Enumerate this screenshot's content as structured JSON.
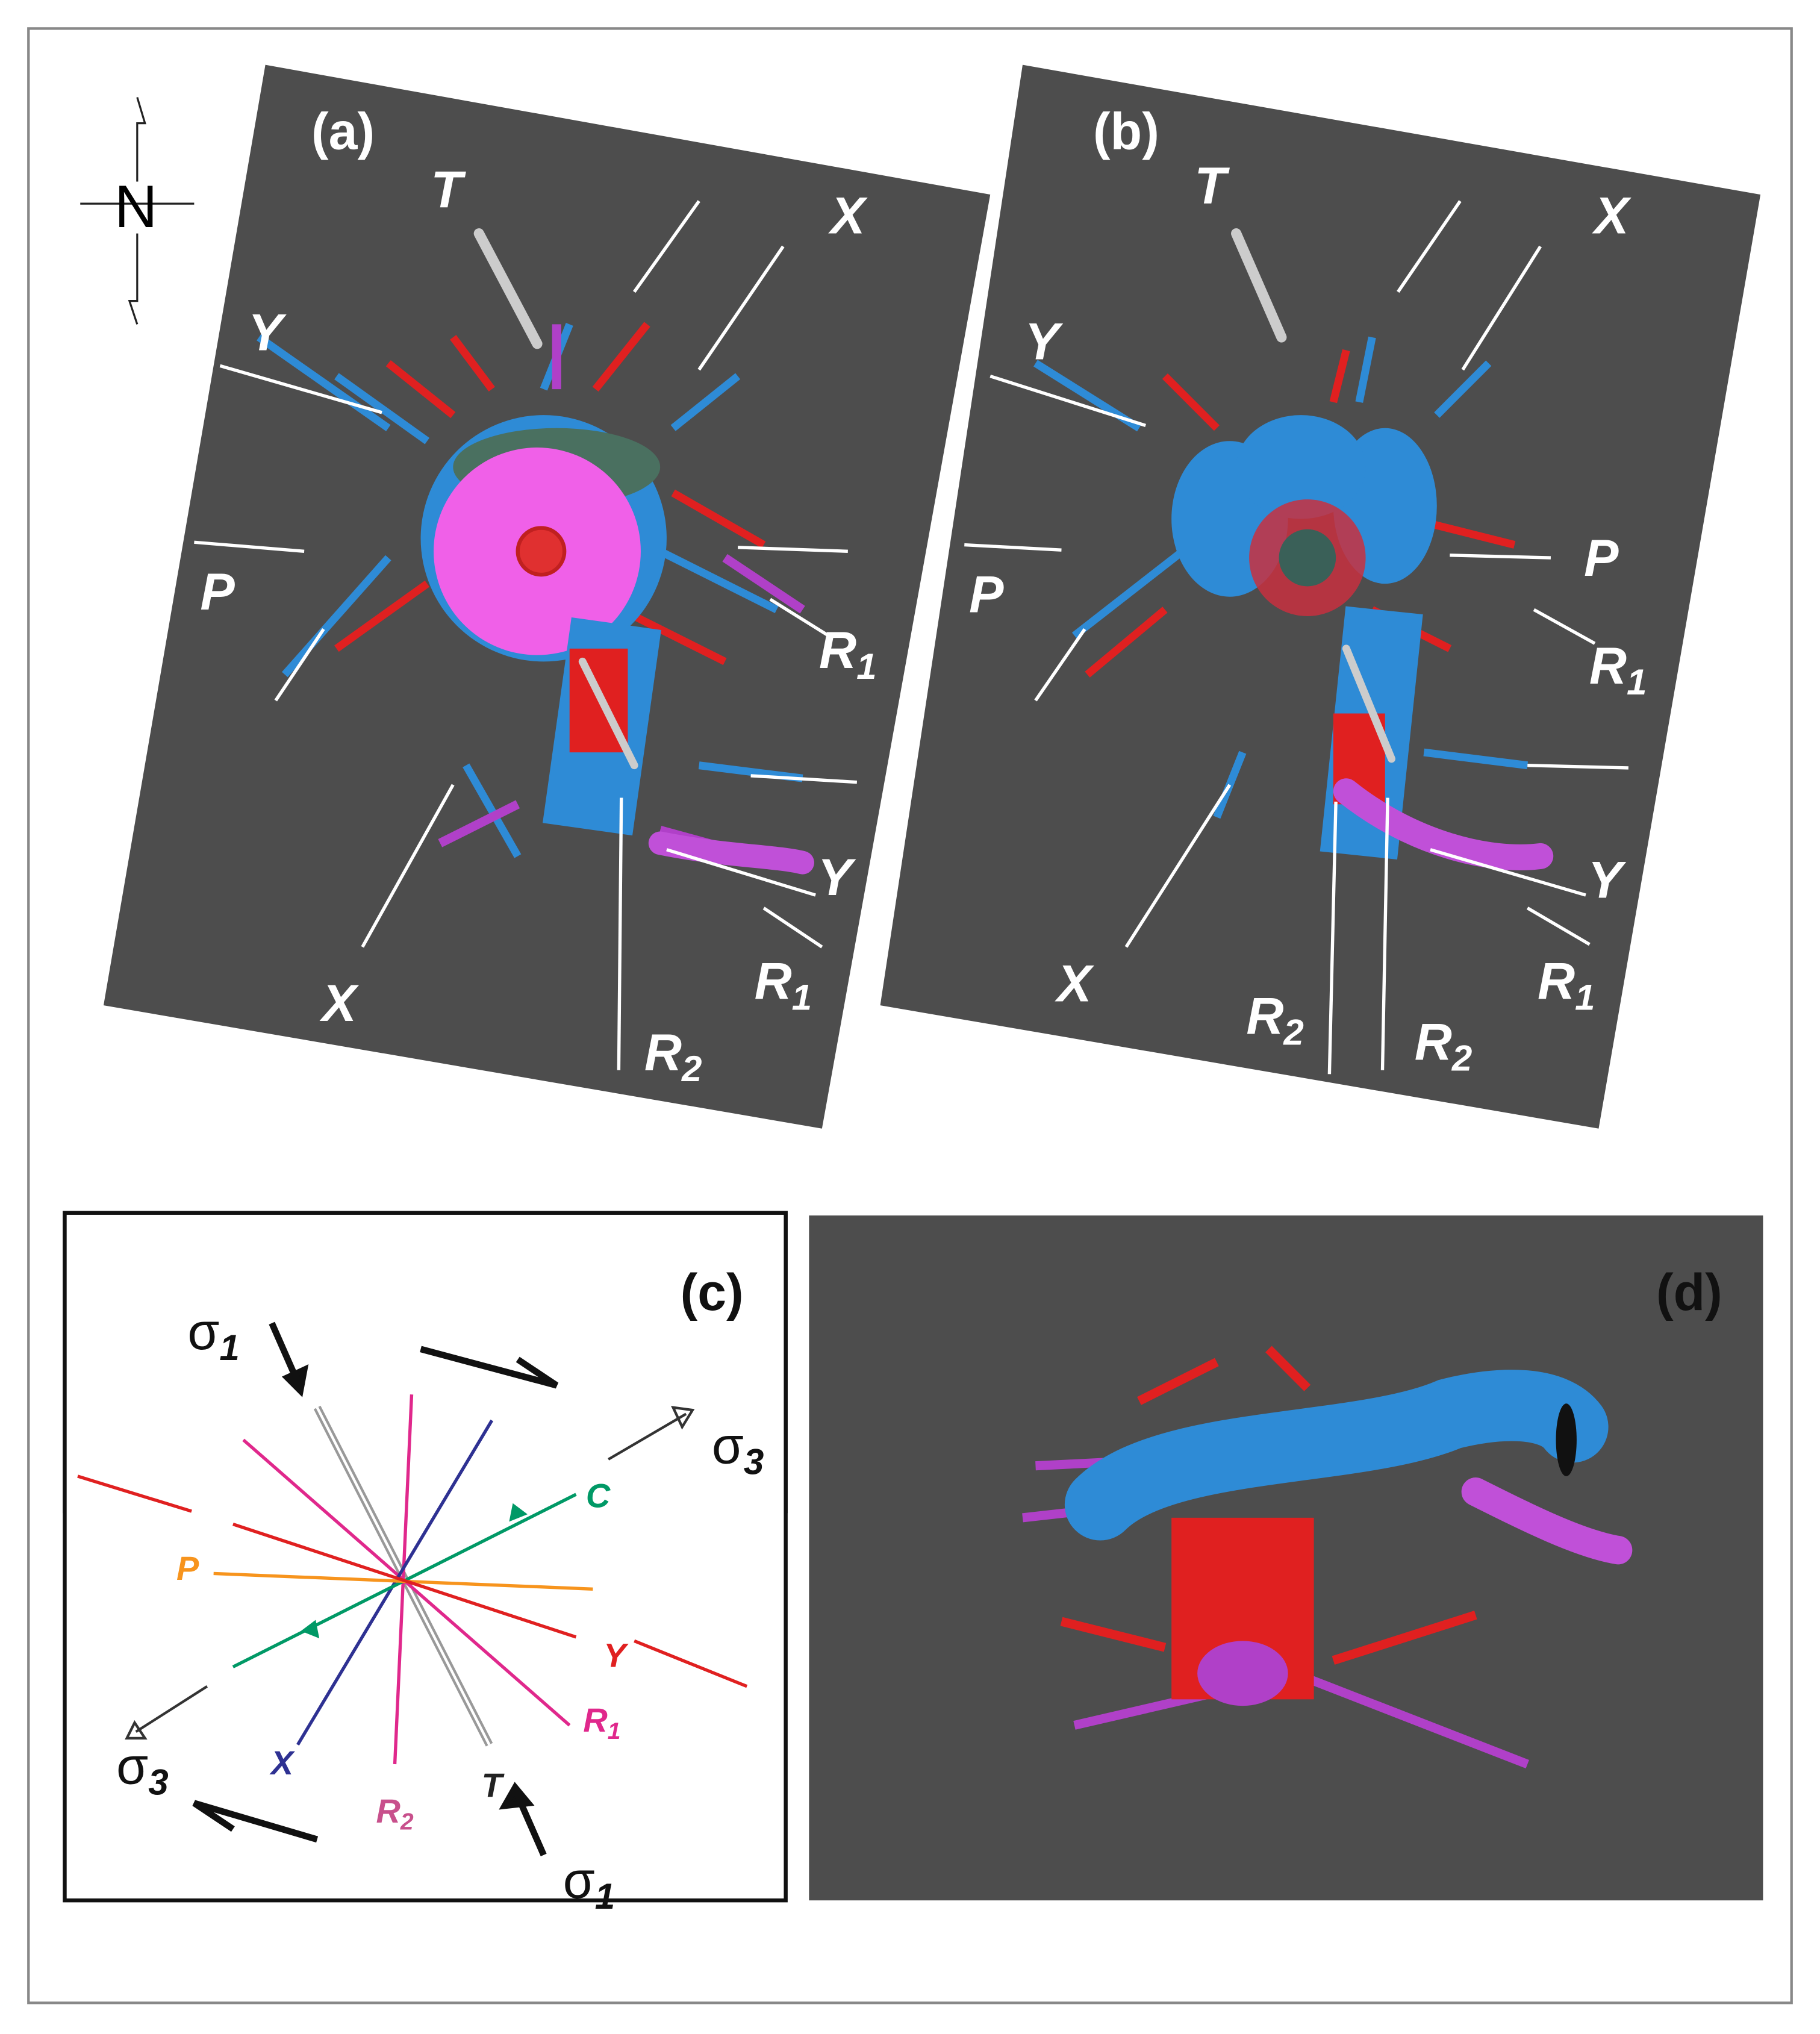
{
  "compass": "N",
  "panels": [
    {
      "label": "(a)",
      "labels": [
        {
          "text": "T"
        },
        {
          "text": "X"
        },
        {
          "text": "Y"
        },
        {
          "text": "P"
        },
        {
          "base": "R",
          "sub": "1"
        },
        {
          "text": "Y"
        },
        {
          "base": "R",
          "sub": "1"
        },
        {
          "text": "X"
        },
        {
          "base": "R",
          "sub": "2"
        }
      ]
    },
    {
      "label": "(b)",
      "labels": [
        {
          "text": "T"
        },
        {
          "text": "X"
        },
        {
          "text": "Y"
        },
        {
          "text": "P"
        },
        {
          "text": "P"
        },
        {
          "base": "R",
          "sub": "1"
        },
        {
          "text": "Y"
        },
        {
          "base": "R",
          "sub": "1"
        },
        {
          "text": "X"
        },
        {
          "base": "R",
          "sub": "2"
        },
        {
          "base": "R",
          "sub": "2"
        }
      ]
    },
    {
      "label": "(c)",
      "labels": [
        {
          "base": "σ",
          "sub": "1"
        },
        {
          "base": "σ",
          "sub": "3"
        },
        {
          "text": "C"
        },
        {
          "text": "P"
        },
        {
          "text": "Y"
        },
        {
          "base": "R",
          "sub": "1"
        },
        {
          "text": "X"
        },
        {
          "base": "R",
          "sub": "2"
        },
        {
          "text": "T"
        },
        {
          "base": "σ",
          "sub": "3"
        },
        {
          "base": "σ",
          "sub": "1"
        }
      ]
    },
    {
      "label": "(d)",
      "labels": []
    }
  ]
}
